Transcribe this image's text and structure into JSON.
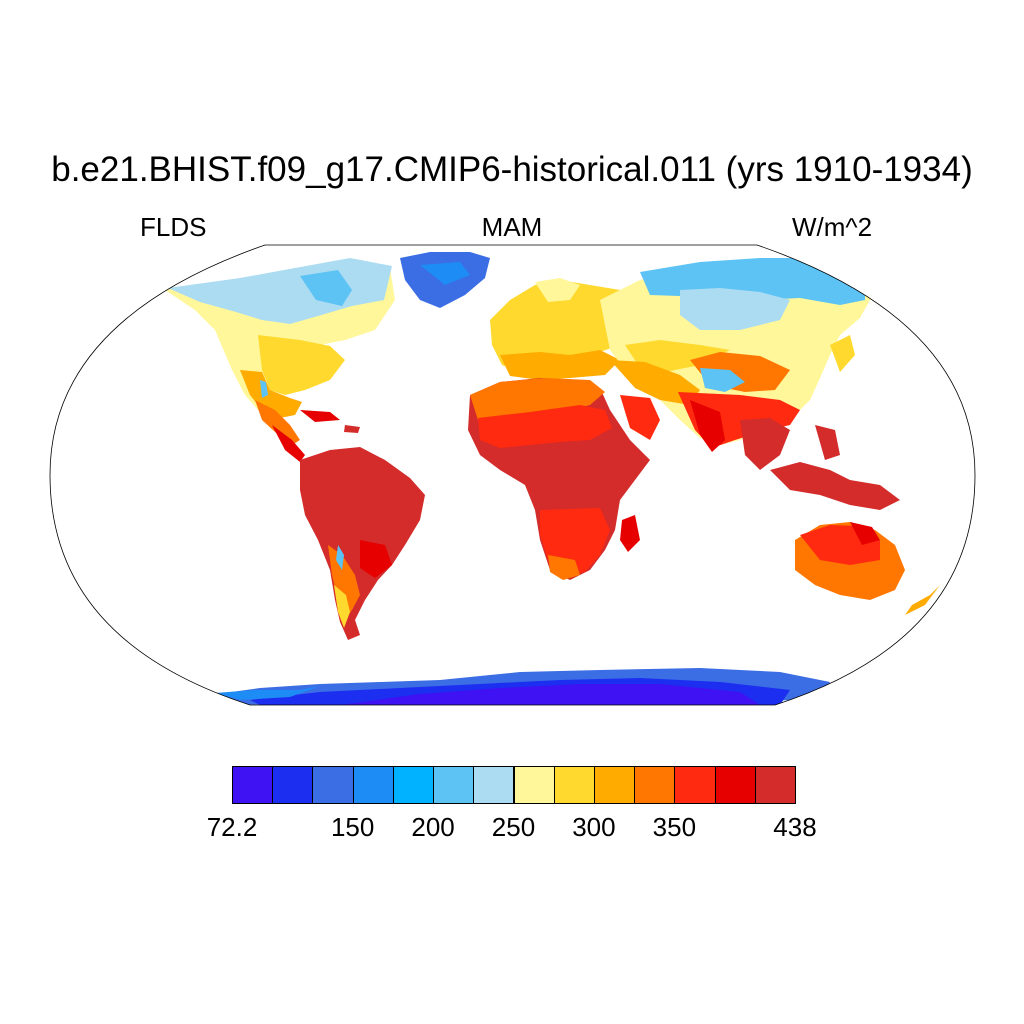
{
  "title": "b.e21.BHIST.f09_g17.CMIP6-historical.011 (yrs 1910-1934)",
  "left_string": "FLDS",
  "center_string": "MAM",
  "right_string": "W/m^2",
  "colorbar": {
    "colors": [
      "#3e12f2",
      "#1c2ef0",
      "#3b6de4",
      "#1e8cf5",
      "#00b2ff",
      "#5cc3f4",
      "#acdcf2",
      "#fff79a",
      "#ffd92e",
      "#ffab00",
      "#ff7700",
      "#ff2a10",
      "#e60000",
      "#d42b2b"
    ],
    "labels": [
      "72.2",
      "150",
      "200",
      "250",
      "300",
      "350",
      "438"
    ]
  },
  "icons": {
    "land": "continent-shape",
    "ocean": "missing-value-white"
  }
}
